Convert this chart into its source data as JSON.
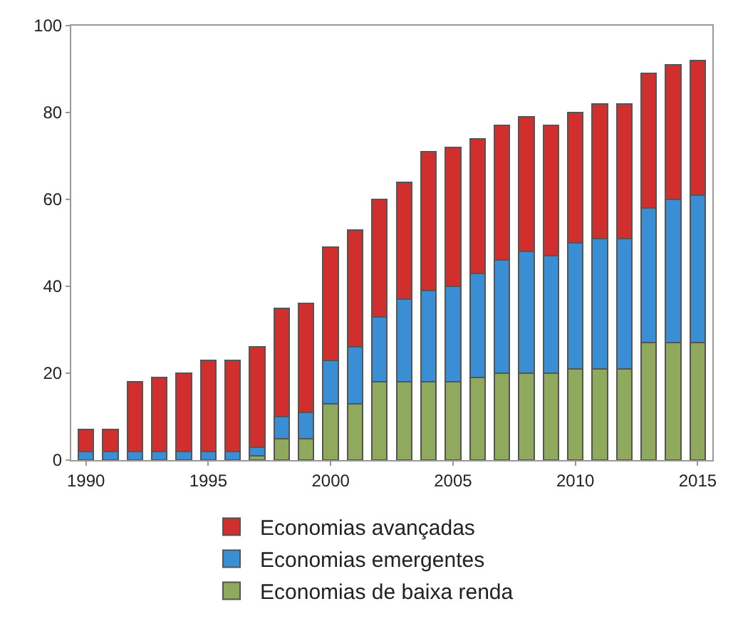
{
  "chart_data": {
    "type": "bar",
    "stacked": true,
    "x": [
      1990,
      1991,
      1992,
      1993,
      1994,
      1995,
      1996,
      1997,
      1998,
      1999,
      2000,
      2001,
      2002,
      2003,
      2004,
      2005,
      2006,
      2007,
      2008,
      2009,
      2010,
      2011,
      2012,
      2013,
      2014,
      2015
    ],
    "series": [
      {
        "name": "Economias de baixa renda",
        "color": "#8faa5c",
        "values": [
          0,
          0,
          0,
          0,
          0,
          0,
          0,
          1,
          5,
          5,
          13,
          13,
          18,
          18,
          18,
          18,
          19,
          20,
          20,
          20,
          21,
          21,
          21,
          27,
          27,
          27
        ]
      },
      {
        "name": "Economias emergentes",
        "color": "#3a8fd4",
        "values": [
          2,
          2,
          2,
          2,
          2,
          2,
          2,
          2,
          5,
          6,
          10,
          13,
          15,
          19,
          21,
          22,
          24,
          26,
          28,
          27,
          29,
          30,
          30,
          31,
          33,
          34
        ]
      },
      {
        "name": "Economias avançadas",
        "color": "#d12e2e",
        "values": [
          5,
          5,
          16,
          17,
          18,
          21,
          21,
          23,
          25,
          25,
          26,
          27,
          27,
          27,
          32,
          32,
          31,
          31,
          31,
          30,
          30,
          31,
          31,
          31,
          31,
          31
        ]
      }
    ],
    "xlim": [
      1989.4,
      2015.6
    ],
    "xticks": [
      1990,
      1995,
      2000,
      2005,
      2010,
      2015
    ],
    "ylim": [
      0,
      100
    ],
    "yticks": [
      0,
      20,
      40,
      60,
      80,
      100
    ],
    "grid": false,
    "legend": "bottom"
  }
}
